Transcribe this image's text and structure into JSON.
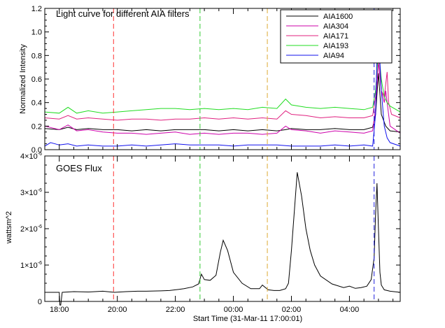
{
  "chart_data": [
    {
      "type": "line",
      "title": "Light curve for different AIA filters",
      "ylabel": "Normalized Intensity",
      "xlabel": "",
      "xlim": [
        -0.5,
        11.75
      ],
      "ylim": [
        0.0,
        1.2
      ],
      "yticks": [
        "0.0",
        "0.2",
        "0.4",
        "0.6",
        "0.8",
        "1.0",
        "1.2"
      ],
      "legend_position": "top-right",
      "series": [
        {
          "name": "AIA1600",
          "color": "#000000",
          "x": [
            -0.5,
            0.0,
            0.3,
            0.6,
            1.0,
            1.5,
            2.0,
            2.5,
            3.0,
            3.5,
            4.0,
            4.5,
            5.0,
            5.5,
            6.0,
            6.5,
            7.0,
            7.5,
            7.8,
            8.0,
            8.5,
            9.0,
            9.5,
            10.0,
            10.5,
            10.8,
            10.9,
            11.0,
            11.1,
            11.25,
            11.4,
            11.75
          ],
          "y": [
            0.18,
            0.17,
            0.19,
            0.17,
            0.18,
            0.17,
            0.17,
            0.16,
            0.17,
            0.16,
            0.17,
            0.17,
            0.17,
            0.16,
            0.17,
            0.16,
            0.17,
            0.16,
            0.17,
            0.18,
            0.17,
            0.17,
            0.18,
            0.17,
            0.17,
            0.19,
            0.3,
            0.65,
            0.3,
            0.2,
            0.16,
            0.15
          ]
        },
        {
          "name": "AIA304",
          "color": "#cc00aa",
          "x": [
            -0.5,
            0.0,
            0.3,
            0.6,
            1.0,
            1.5,
            2.0,
            2.5,
            3.0,
            3.5,
            4.0,
            4.5,
            5.0,
            5.5,
            6.0,
            6.5,
            7.0,
            7.5,
            7.8,
            8.0,
            8.5,
            9.0,
            9.5,
            10.0,
            10.5,
            10.8,
            10.9,
            11.0,
            11.1,
            11.2,
            11.25,
            11.3,
            11.4,
            11.75
          ],
          "y": [
            0.2,
            0.17,
            0.21,
            0.16,
            0.17,
            0.15,
            0.14,
            0.14,
            0.13,
            0.14,
            0.15,
            0.13,
            0.14,
            0.13,
            0.14,
            0.14,
            0.13,
            0.14,
            0.2,
            0.17,
            0.16,
            0.14,
            0.16,
            0.15,
            0.14,
            0.16,
            0.35,
            0.75,
            0.5,
            0.4,
            0.5,
            0.4,
            0.2,
            0.14
          ]
        },
        {
          "name": "AIA171",
          "color": "#e0207f",
          "x": [
            -0.5,
            0.0,
            0.3,
            0.6,
            1.0,
            1.5,
            2.0,
            2.5,
            3.0,
            3.5,
            4.0,
            4.5,
            5.0,
            5.5,
            6.0,
            6.5,
            7.0,
            7.5,
            7.8,
            8.0,
            8.5,
            9.0,
            9.5,
            10.0,
            10.5,
            10.8,
            10.9,
            11.0,
            11.1,
            11.2,
            11.3,
            11.35,
            11.45,
            11.75
          ],
          "y": [
            0.27,
            0.26,
            0.29,
            0.26,
            0.27,
            0.26,
            0.25,
            0.26,
            0.26,
            0.25,
            0.26,
            0.26,
            0.27,
            0.26,
            0.27,
            0.26,
            0.27,
            0.26,
            0.33,
            0.3,
            0.29,
            0.27,
            0.28,
            0.27,
            0.27,
            0.29,
            0.45,
            0.9,
            0.5,
            0.45,
            0.66,
            0.4,
            0.3,
            0.27
          ]
        },
        {
          "name": "AIA193",
          "color": "#22dd22",
          "x": [
            -0.5,
            0.0,
            0.3,
            0.6,
            1.0,
            1.5,
            2.0,
            2.5,
            3.0,
            3.5,
            4.0,
            4.5,
            5.0,
            5.5,
            6.0,
            6.5,
            7.0,
            7.5,
            7.8,
            8.0,
            8.5,
            9.0,
            9.5,
            10.0,
            10.5,
            10.8,
            10.9,
            11.0,
            11.1,
            11.2,
            11.3,
            11.4,
            11.75
          ],
          "y": [
            0.32,
            0.31,
            0.36,
            0.31,
            0.33,
            0.31,
            0.32,
            0.33,
            0.34,
            0.35,
            0.35,
            0.34,
            0.35,
            0.34,
            0.35,
            0.34,
            0.36,
            0.35,
            0.43,
            0.38,
            0.36,
            0.35,
            0.36,
            0.35,
            0.34,
            0.36,
            0.5,
            0.85,
            0.6,
            0.45,
            0.4,
            0.37,
            0.32
          ]
        },
        {
          "name": "AIA94",
          "color": "#1010ee",
          "x": [
            -0.5,
            -0.3,
            0.0,
            0.3,
            0.6,
            1.0,
            1.5,
            2.0,
            2.5,
            3.0,
            3.5,
            4.0,
            4.5,
            5.0,
            5.5,
            6.0,
            6.5,
            7.0,
            7.5,
            8.0,
            8.5,
            9.0,
            9.5,
            10.0,
            10.5,
            10.8,
            10.9,
            10.95,
            11.0,
            11.1,
            11.2,
            11.3,
            11.4,
            11.75
          ],
          "y": [
            0.03,
            0.06,
            0.04,
            0.05,
            0.03,
            0.04,
            0.03,
            0.03,
            0.04,
            0.03,
            0.04,
            0.05,
            0.04,
            0.04,
            0.04,
            0.03,
            0.04,
            0.04,
            0.04,
            0.03,
            0.03,
            0.03,
            0.04,
            0.03,
            0.04,
            0.03,
            0.3,
            0.8,
            1.0,
            0.5,
            0.2,
            0.1,
            0.06,
            0.03
          ]
        }
      ],
      "vlines": [
        {
          "x": 1.87,
          "color": "#ff3333"
        },
        {
          "x": 4.85,
          "color": "#33cc33"
        },
        {
          "x": 7.17,
          "color": "#ddaa33"
        },
        {
          "x": 10.85,
          "color": "#2222dd"
        }
      ]
    },
    {
      "type": "line",
      "title": "GOES Flux",
      "ylabel": "wattsm^2",
      "xlabel": "Start Time (31-Mar-11 17:00:01)",
      "xlim": [
        -0.5,
        11.75
      ],
      "ylim": [
        0.0,
        4e-06
      ],
      "ytick_values": [
        0,
        1e-06,
        2e-06,
        3e-06,
        4e-06
      ],
      "ytick_base": [
        "0",
        "1×10",
        "2×10",
        "3×10",
        "4×10"
      ],
      "ytick_exp": [
        "",
        "-6",
        "-6",
        "-6",
        "-6"
      ],
      "xticks": [
        0,
        2,
        4,
        6,
        8,
        10
      ],
      "xtick_labels": [
        "18:00",
        "20:00",
        "22:00",
        "00:00",
        "02:00",
        "04:00"
      ],
      "series": [
        {
          "name": "",
          "color": "#000000",
          "x": [
            -0.5,
            0.0,
            0.02,
            0.05,
            0.1,
            0.5,
            1.0,
            1.5,
            1.9,
            2.3,
            2.7,
            3.0,
            3.5,
            3.8,
            4.0,
            4.3,
            4.6,
            4.8,
            4.9,
            5.0,
            5.2,
            5.4,
            5.55,
            5.65,
            5.8,
            6.0,
            6.3,
            6.6,
            6.9,
            7.0,
            7.2,
            7.4,
            7.6,
            7.8,
            7.9,
            8.0,
            8.2,
            8.35,
            8.5,
            8.65,
            8.8,
            9.0,
            9.4,
            9.8,
            10.0,
            10.2,
            10.4,
            10.6,
            10.75,
            10.85,
            10.9,
            10.95,
            11.0,
            11.05,
            11.1,
            11.2,
            11.4,
            11.75
          ],
          "y": [
            2.5e-07,
            2.5e-07,
            -1e-07,
            -1e-07,
            2.5e-07,
            2.7e-07,
            2.6e-07,
            2.8e-07,
            2.5e-07,
            2.7e-07,
            2.8e-07,
            2.8e-07,
            2.9e-07,
            3e-07,
            3.2e-07,
            3.5e-07,
            4e-07,
            4.8e-07,
            7.5e-07,
            6e-07,
            5.8e-07,
            7.2e-07,
            1.35e-06,
            1.68e-06,
            1.4e-06,
            8e-07,
            5e-07,
            3.5e-07,
            3.5e-07,
            4.5e-07,
            3.2e-07,
            3e-07,
            3e-07,
            3.5e-07,
            5e-07,
            1.4e-06,
            3.55e-06,
            2.9e-06,
            2e-06,
            1.4e-06,
            1e-06,
            7e-07,
            4.8e-07,
            3.8e-07,
            4.2e-07,
            3.6e-07,
            3.8e-07,
            4.2e-07,
            6e-07,
            1.2e-06,
            2.4e-06,
            3.25e-06,
            2e-06,
            8e-07,
            4.5e-07,
            3.2e-07,
            2.8e-07,
            2.5e-07
          ]
        }
      ],
      "vlines": [
        {
          "x": 1.87,
          "color": "#ff3333"
        },
        {
          "x": 4.85,
          "color": "#33cc33"
        },
        {
          "x": 7.17,
          "color": "#ddaa33"
        },
        {
          "x": 10.85,
          "color": "#2222dd"
        }
      ]
    }
  ]
}
